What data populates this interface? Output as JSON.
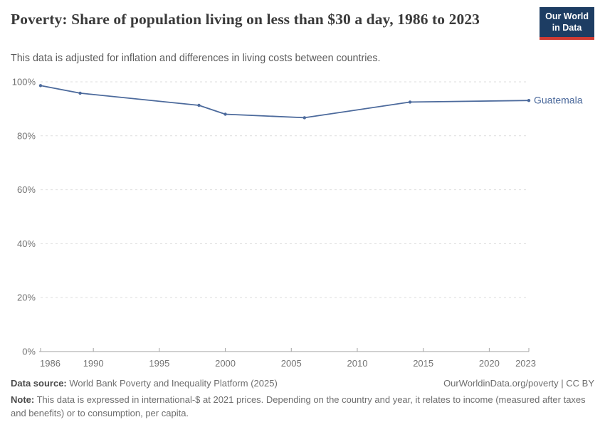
{
  "header": {
    "title": "Poverty: Share of population living on less than $30 a day, 1986 to 2023",
    "subtitle": "This data is adjusted for inflation and differences in living costs between countries.",
    "logo": {
      "line1": "Our World",
      "line2": "in Data"
    }
  },
  "chart_data": {
    "type": "line",
    "title": "Poverty: Share of population living on less than $30 a day, 1986 to 2023",
    "subtitle": "This data is adjusted for inflation and differences in living costs between countries.",
    "xlabel": "",
    "ylabel": "",
    "xlim": [
      1986,
      2023
    ],
    "ylim": [
      0,
      100
    ],
    "xticks": [
      1986,
      1990,
      1995,
      2000,
      2005,
      2010,
      2015,
      2020,
      2023
    ],
    "yticks": [
      0,
      20,
      40,
      60,
      80,
      100
    ],
    "ytick_suffix": "%",
    "grid": "horizontal-dashed",
    "legend_position": "line-end-label",
    "series": [
      {
        "name": "Guatemala",
        "color": "#4C6A9C",
        "x": [
          1986,
          1989,
          1998,
          2000,
          2006,
          2014,
          2023
        ],
        "values": [
          98.6,
          95.8,
          91.3,
          88.0,
          86.7,
          92.5,
          93.1
        ]
      }
    ]
  },
  "footer": {
    "datasource_label": "Data source:",
    "datasource": "World Bank Poverty and Inequality Platform (2025)",
    "link": "OurWorldinData.org/poverty | CC BY",
    "note_label": "Note:",
    "note": "This data is expressed in international-$ at 2021 prices. Depending on the country and year, it relates to income (measured after taxes and benefits) or to consumption, per capita."
  },
  "colors": {
    "line": "#4C6A9C",
    "logo_navy": "#1D3D63",
    "logo_red": "#CF3B33",
    "gridline": "#DDDDDD",
    "axis": "#A3A3A3",
    "tick_label": "#737373",
    "title_text": "#3A3A3A",
    "subtitle_text": "#5B5B5B",
    "footer_text": "#6E6E6E"
  }
}
